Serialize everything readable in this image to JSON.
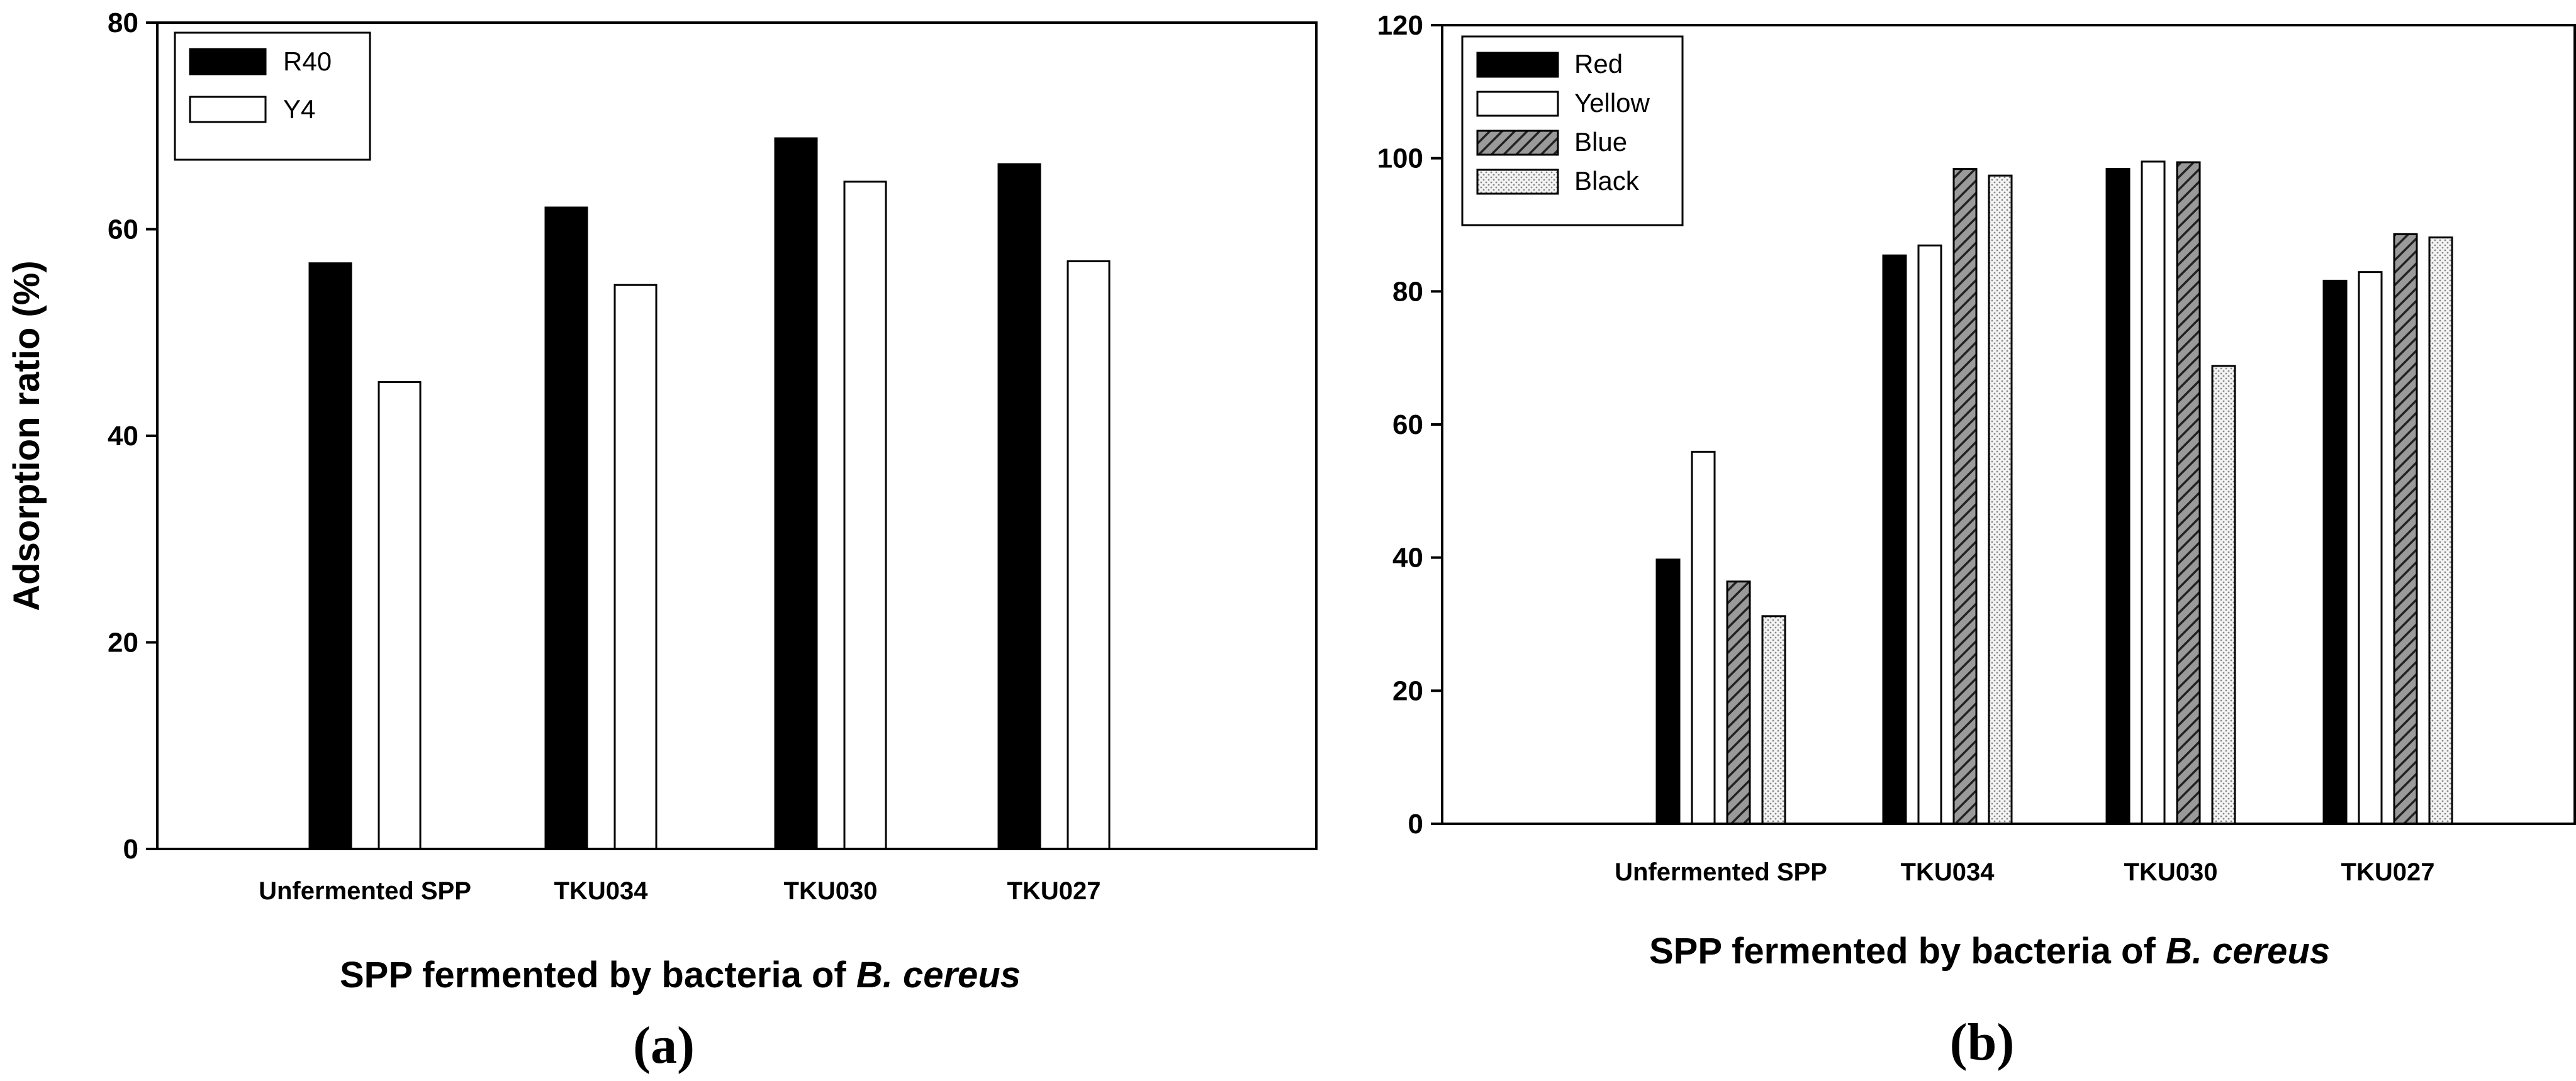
{
  "chart_data": [
    {
      "type": "bar",
      "panel_label": "(a)",
      "xlabel": "SPP fermented by bacteria of",
      "xlabel_italic": "B. cereus",
      "ylabel": "Adsorption ratio (%)",
      "ylim": [
        0,
        80
      ],
      "yticks": [
        "0",
        "20",
        "40",
        "60",
        "80"
      ],
      "categories": [
        "Unfermented SPP",
        "TKU034",
        "TKU030",
        "TKU027"
      ],
      "legend_position": "top-left",
      "series": [
        {
          "name": "R40",
          "color": "#000000",
          "pattern": "solid",
          "values": [
            56.7,
            62.1,
            68.8,
            66.3
          ]
        },
        {
          "name": "Y4",
          "color": "#ffffff",
          "pattern": "solid",
          "values": [
            45.2,
            54.6,
            64.6,
            56.9
          ]
        }
      ]
    },
    {
      "type": "bar",
      "panel_label": "(b)",
      "xlabel": "SPP fermented by bacteria of",
      "xlabel_italic": "B. cereus",
      "ylabel": "",
      "ylim": [
        0,
        120
      ],
      "yticks": [
        "0",
        "20",
        "40",
        "60",
        "80",
        "100",
        "120"
      ],
      "categories": [
        "Unfermented SPP",
        "TKU034",
        "TKU030",
        "TKU027"
      ],
      "legend_position": "top-left",
      "series": [
        {
          "name": "Red",
          "color": "#000000",
          "pattern": "solid",
          "values": [
            39.7,
            85.4,
            98.4,
            81.6
          ]
        },
        {
          "name": "Yellow",
          "color": "#ffffff",
          "pattern": "solid",
          "values": [
            55.9,
            86.9,
            99.5,
            82.9
          ]
        },
        {
          "name": "Blue",
          "color": "#555555",
          "pattern": "hatch",
          "values": [
            36.4,
            98.4,
            99.4,
            88.6
          ]
        },
        {
          "name": "Black",
          "color": "#dddddd",
          "pattern": "dotted",
          "values": [
            31.2,
            97.4,
            68.8,
            88.1
          ]
        }
      ]
    }
  ]
}
